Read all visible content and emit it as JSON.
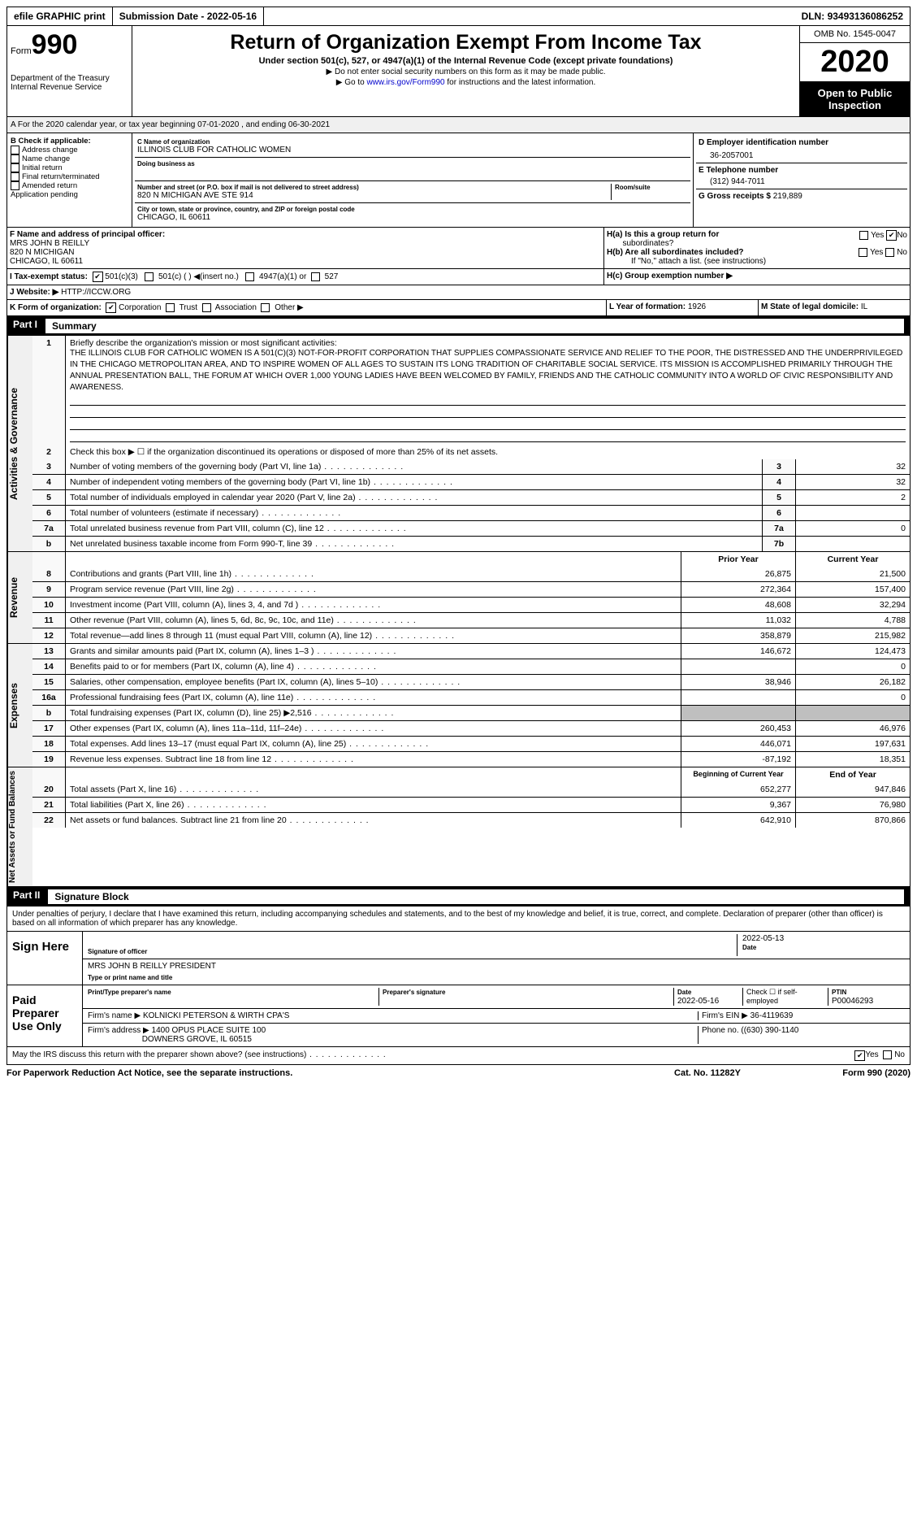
{
  "topbar": {
    "efile": "efile GRAPHIC print",
    "subdate_lbl": "Submission Date - ",
    "subdate": "2022-05-16",
    "dln_lbl": "DLN: ",
    "dln": "93493136086252"
  },
  "header": {
    "form": "Form",
    "f990": "990",
    "dept": "Department of the Treasury",
    "irs": "Internal Revenue Service",
    "title": "Return of Organization Exempt From Income Tax",
    "subtitle": "Under section 501(c), 527, or 4947(a)(1) of the Internal Revenue Code (except private foundations)",
    "note1": "▶ Do not enter social security numbers on this form as it may be made public.",
    "note2_pre": "▶ Go to ",
    "note2_link": "www.irs.gov/Form990",
    "note2_post": " for instructions and the latest information.",
    "omb": "OMB No. 1545-0047",
    "year": "2020",
    "open": "Open to Public Inspection"
  },
  "periodA": "A For the 2020 calendar year, or tax year beginning 07-01-2020     , and ending 06-30-2021",
  "boxB": {
    "head": "B Check if applicable:",
    "items": [
      "Address change",
      "Name change",
      "Initial return",
      "Final return/terminated",
      "Amended return",
      "Application pending"
    ],
    "pending_mark": "☐"
  },
  "boxC": {
    "name_lbl": "C Name of organization",
    "name": "ILLINOIS CLUB FOR CATHOLIC WOMEN",
    "dba_lbl": "Doing business as",
    "dba": "",
    "street_lbl": "Number and street (or P.O. box if mail is not delivered to street address)",
    "room_lbl": "Room/suite",
    "street": "820 N MICHIGAN AVE STE 914",
    "city_lbl": "City or town, state or province, country, and ZIP or foreign postal code",
    "city": "CHICAGO, IL  60611"
  },
  "boxD": {
    "ein_lbl": "D Employer identification number",
    "ein": "36-2057001",
    "tel_lbl": "E Telephone number",
    "tel": "(312) 944-7011",
    "gross_lbl": "G Gross receipts $ ",
    "gross": "219,889"
  },
  "boxF": {
    "lbl": "F  Name and address of principal officer:",
    "name": "MRS JOHN B REILLY",
    "addr1": "820 N MICHIGAN",
    "addr2": "CHICAGO, IL  60611"
  },
  "boxH": {
    "a": "H(a)  Is this a group return for",
    "a2": "subordinates?",
    "b": "H(b)  Are all subordinates included?",
    "bnote": "If \"No,\" attach a list. (see instructions)",
    "c": "H(c)  Group exemption number ▶",
    "yes": "Yes",
    "no": "No"
  },
  "boxI": {
    "lbl": "I   Tax-exempt status:",
    "c3": "501(c)(3)",
    "c": "501(c) (  ) ◀(insert no.)",
    "a1": "4947(a)(1) or",
    "s527": "527"
  },
  "boxJ": {
    "lbl": "J  Website: ▶",
    "val": "HTTP://ICCW.ORG"
  },
  "boxK": {
    "lbl": "K Form of organization:",
    "corp": "Corporation",
    "trust": "Trust",
    "assoc": "Association",
    "other": "Other ▶"
  },
  "boxL": {
    "lbl": "L Year of formation: ",
    "val": "1926"
  },
  "boxM": {
    "lbl": "M State of legal domicile: ",
    "val": "IL"
  },
  "part1": {
    "label": "Part I",
    "title": "Summary"
  },
  "activities": {
    "label": "Activities & Governance",
    "l1": "Briefly describe the organization's mission or most significant activities:",
    "mission": "THE ILLINOIS CLUB FOR CATHOLIC WOMEN IS A 501(C)(3) NOT-FOR-PROFIT CORPORATION THAT SUPPLIES COMPASSIONATE SERVICE AND RELIEF TO THE POOR, THE DISTRESSED AND THE UNDERPRIVILEGED IN THE CHICAGO METROPOLITAN AREA, AND TO INSPIRE WOMEN OF ALL AGES TO SUSTAIN ITS LONG TRADITION OF CHARITABLE SOCIAL SERVICE. ITS MISSION IS ACCOMPLISHED PRIMARILY THROUGH THE ANNUAL PRESENTATION BALL, THE FORUM AT WHICH OVER 1,000 YOUNG LADIES HAVE BEEN WELCOMED BY FAMILY, FRIENDS AND THE CATHOLIC COMMUNITY INTO A WORLD OF CIVIC RESPONSIBILITY AND AWARENESS.",
    "l2": "Check this box ▶ ☐  if the organization discontinued its operations or disposed of more than 25% of its net assets.",
    "rows": [
      {
        "n": "3",
        "t": "Number of voting members of the governing body (Part VI, line 1a)",
        "c": "3",
        "v": "32"
      },
      {
        "n": "4",
        "t": "Number of independent voting members of the governing body (Part VI, line 1b)",
        "c": "4",
        "v": "32"
      },
      {
        "n": "5",
        "t": "Total number of individuals employed in calendar year 2020 (Part V, line 2a)",
        "c": "5",
        "v": "2"
      },
      {
        "n": "6",
        "t": "Total number of volunteers (estimate if necessary)",
        "c": "6",
        "v": ""
      },
      {
        "n": "7a",
        "t": "Total unrelated business revenue from Part VIII, column (C), line 12",
        "c": "7a",
        "v": "0"
      },
      {
        "n": " b",
        "t": "Net unrelated business taxable income from Form 990-T, line 39",
        "c": "7b",
        "v": ""
      }
    ]
  },
  "revenue": {
    "label": "Revenue",
    "h1": "Prior Year",
    "h2": "Current Year",
    "rows": [
      {
        "n": "8",
        "t": "Contributions and grants (Part VIII, line 1h)",
        "p": "26,875",
        "c": "21,500"
      },
      {
        "n": "9",
        "t": "Program service revenue (Part VIII, line 2g)",
        "p": "272,364",
        "c": "157,400"
      },
      {
        "n": "10",
        "t": "Investment income (Part VIII, column (A), lines 3, 4, and 7d )",
        "p": "48,608",
        "c": "32,294"
      },
      {
        "n": "11",
        "t": "Other revenue (Part VIII, column (A), lines 5, 6d, 8c, 9c, 10c, and 11e)",
        "p": "11,032",
        "c": "4,788"
      },
      {
        "n": "12",
        "t": "Total revenue—add lines 8 through 11 (must equal Part VIII, column (A), line 12)",
        "p": "358,879",
        "c": "215,982"
      }
    ]
  },
  "expenses": {
    "label": "Expenses",
    "rows": [
      {
        "n": "13",
        "t": "Grants and similar amounts paid (Part IX, column (A), lines 1–3 )",
        "p": "146,672",
        "c": "124,473"
      },
      {
        "n": "14",
        "t": "Benefits paid to or for members (Part IX, column (A), line 4)",
        "p": "",
        "c": "0"
      },
      {
        "n": "15",
        "t": "Salaries, other compensation, employee benefits (Part IX, column (A), lines 5–10)",
        "p": "38,946",
        "c": "26,182"
      },
      {
        "n": "16a",
        "t": "Professional fundraising fees (Part IX, column (A), line 11e)",
        "p": "",
        "c": "0"
      },
      {
        "n": " b",
        "t": "Total fundraising expenses (Part IX, column (D), line 25) ▶2,516",
        "p": "GRAY",
        "c": "GRAY"
      },
      {
        "n": "17",
        "t": "Other expenses (Part IX, column (A), lines 11a–11d, 11f–24e)",
        "p": "260,453",
        "c": "46,976"
      },
      {
        "n": "18",
        "t": "Total expenses. Add lines 13–17 (must equal Part IX, column (A), line 25)",
        "p": "446,071",
        "c": "197,631"
      },
      {
        "n": "19",
        "t": "Revenue less expenses. Subtract line 18 from line 12",
        "p": "-87,192",
        "c": "18,351"
      }
    ]
  },
  "netassets": {
    "label": "Net Assets or Fund Balances",
    "h1": "Beginning of Current Year",
    "h2": "End of Year",
    "rows": [
      {
        "n": "20",
        "t": "Total assets (Part X, line 16)",
        "p": "652,277",
        "c": "947,846"
      },
      {
        "n": "21",
        "t": "Total liabilities (Part X, line 26)",
        "p": "9,367",
        "c": "76,980"
      },
      {
        "n": "22",
        "t": "Net assets or fund balances. Subtract line 21 from line 20",
        "p": "642,910",
        "c": "870,866"
      }
    ]
  },
  "part2": {
    "label": "Part II",
    "title": "Signature Block",
    "decl": "Under penalties of perjury, I declare that I have examined this return, including accompanying schedules and statements, and to the best of my knowledge and belief, it is true, correct, and complete. Declaration of preparer (other than officer) is based on all information of which preparer has any knowledge.",
    "sign": "Sign Here",
    "sig_off": "Signature of officer",
    "date": "Date",
    "sigdate": "2022-05-13",
    "officer": "MRS JOHN B REILLY PRESIDENT",
    "type_lbl": "Type or print name and title",
    "paid": "Paid Preparer Use Only",
    "prep_name": "Print/Type preparer's name",
    "prep_sig": "Preparer's signature",
    "prep_date_lbl": "Date",
    "prep_date": "2022-05-16",
    "self": "Check ☐ if self-employed",
    "ptin_lbl": "PTIN",
    "ptin": "P00046293",
    "firm_lbl": "Firm's name      ▶",
    "firm": "KOLNICKI PETERSON & WIRTH CPA'S",
    "fein_lbl": "Firm's EIN ▶",
    "fein": "36-4119639",
    "faddr_lbl": "Firm's address ▶",
    "faddr1": "1400 OPUS PLACE SUITE 100",
    "faddr2": "DOWNERS GROVE, IL  60515",
    "phone_lbl": "Phone no. ",
    "phone": "(630) 390-1140",
    "may": "May the IRS discuss this return with the preparer shown above? (see instructions)"
  },
  "footer": {
    "pra": "For Paperwork Reduction Act Notice, see the separate instructions.",
    "cat": "Cat. No. 11282Y",
    "form": "Form 990 (2020)"
  }
}
